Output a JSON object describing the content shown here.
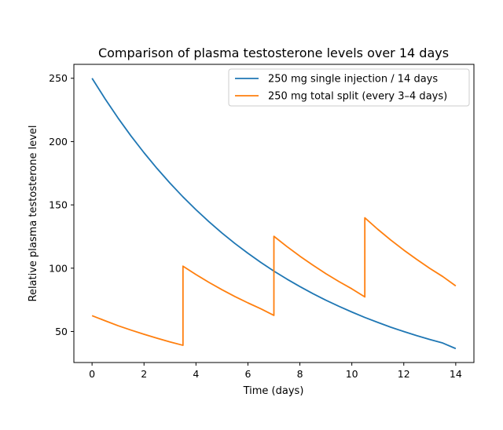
{
  "chart_data": {
    "type": "line",
    "title": "Comparison of plasma testosterone levels over 14 days",
    "xlabel": "Time (days)",
    "ylabel": "Relative plasma testosterone level",
    "xlim": [
      -0.7,
      14.7
    ],
    "ylim": [
      25.5,
      261
    ],
    "xticks": [
      0,
      2,
      4,
      6,
      8,
      10,
      12,
      14
    ],
    "yticks": [
      50,
      100,
      150,
      200,
      250
    ],
    "grid": false,
    "legend_position": "top-right",
    "series": [
      {
        "name": "250 mg single injection / 14 days",
        "color": "#1f77b4",
        "x": [
          0,
          0.5,
          1,
          1.5,
          2,
          2.5,
          3,
          3.5,
          4,
          4.5,
          5,
          5.5,
          6,
          6.5,
          7,
          7.5,
          8,
          8.5,
          9,
          9.5,
          10,
          10.5,
          11,
          11.5,
          12,
          12.5,
          13,
          13.5,
          14
        ],
        "y": [
          250,
          233.8,
          218.6,
          204.4,
          191.2,
          178.8,
          167.2,
          156.3,
          146.2,
          136.7,
          127.8,
          119.5,
          111.8,
          104.5,
          97.7,
          91.4,
          85.5,
          79.9,
          74.7,
          69.9,
          65.4,
          61.1,
          57.2,
          53.4,
          50.0,
          46.7,
          43.7,
          40.9,
          36.5
        ]
      },
      {
        "name": "250 mg total split (every 3–4 days)",
        "color": "#ff7f0e",
        "x": [
          0,
          0.5,
          1,
          1.5,
          2,
          2.5,
          3,
          3.5,
          3.5,
          4,
          4.5,
          5,
          5.5,
          6,
          6.5,
          7,
          7,
          7.5,
          8,
          8.5,
          9,
          9.5,
          10,
          10.5,
          10.5,
          11,
          11.5,
          12,
          12.5,
          13,
          13.5,
          14
        ],
        "y": [
          62.5,
          58.5,
          54.6,
          51.1,
          47.8,
          44.7,
          41.8,
          39.1,
          101.6,
          95.0,
          88.8,
          83.0,
          77.6,
          72.6,
          67.9,
          62.7,
          125.2,
          117.1,
          109.5,
          102.4,
          95.7,
          89.5,
          83.7,
          77.3,
          139.8,
          130.7,
          122.2,
          114.3,
          106.9,
          99.9,
          93.4,
          86.0
        ]
      }
    ]
  }
}
